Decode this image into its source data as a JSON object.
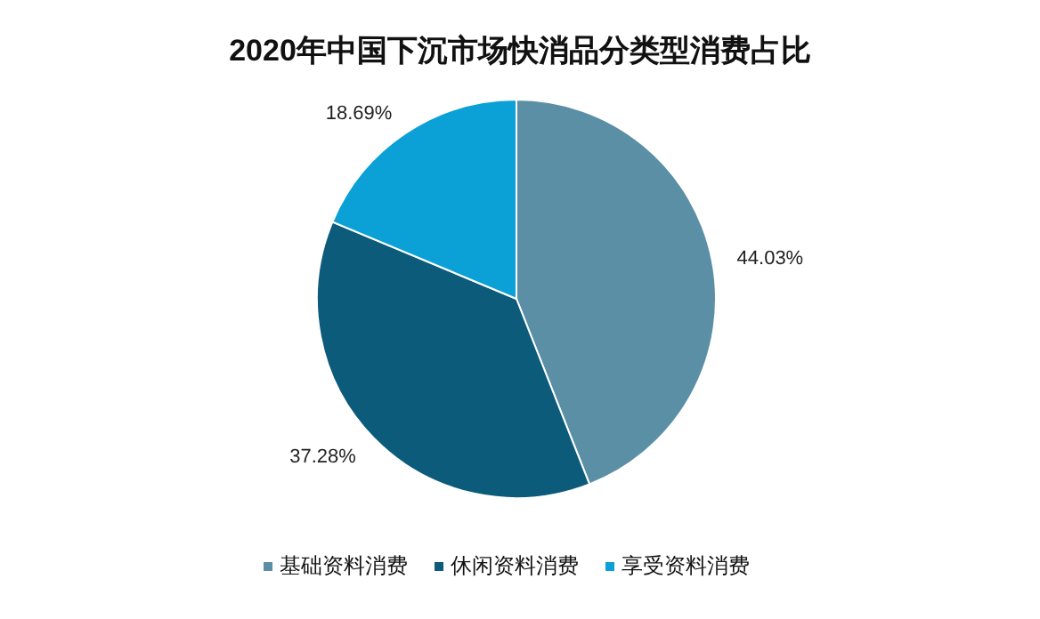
{
  "chart_data": {
    "type": "pie",
    "title": "2020年中国下沉市场快消品分类型消费占比",
    "categories": [
      "基础资料消费",
      "休闲资料消费",
      "享受资料消费"
    ],
    "values": [
      44.03,
      37.28,
      18.69
    ],
    "value_labels": [
      "44.03%",
      "37.28%",
      "18.69%"
    ],
    "colors": [
      "#5b8fa6",
      "#0d5b7b",
      "#0ba0d6"
    ],
    "legend": "bottom"
  }
}
